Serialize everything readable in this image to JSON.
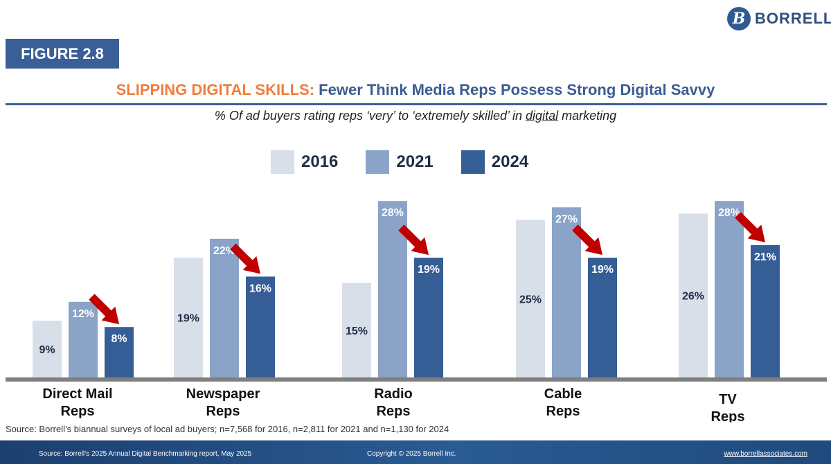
{
  "logo": {
    "mark": "B",
    "text": "BORRELL"
  },
  "figure_label": "FIGURE 2.8",
  "chart_data": {
    "type": "bar",
    "title_accent": "SLIPPING DIGITAL SKILLS:",
    "title": "Fewer Think Media Reps Possess Strong Digital Savvy",
    "subtitle_before": "% Of ad buyers rating reps ‘very’ to ‘extremely skilled’ in ",
    "subtitle_underlined": "digital",
    "subtitle_after": " marketing",
    "categories": [
      [
        "Direct Mail",
        "Reps"
      ],
      [
        "Newspaper",
        "Reps"
      ],
      [
        "Radio",
        "Reps"
      ],
      [
        "Cable",
        "Reps"
      ],
      [
        "TV",
        "Reps"
      ]
    ],
    "series": [
      {
        "name": "2016",
        "values": [
          9,
          19,
          15,
          25,
          26
        ],
        "labels": [
          "9%",
          "19%",
          "15%",
          "25%",
          "26%"
        ]
      },
      {
        "name": "2021",
        "values": [
          12,
          22,
          28,
          27,
          28
        ],
        "labels": [
          "12%",
          "22%",
          "28%",
          "27%",
          "28%"
        ]
      },
      {
        "name": "2024",
        "values": [
          8,
          16,
          19,
          19,
          21
        ],
        "labels": [
          "8%",
          "16%",
          "19%",
          "19%",
          "21%"
        ]
      }
    ],
    "ylim": [
      0,
      30
    ],
    "legend_position": "top",
    "grid": false,
    "annotations": "red downward arrow pointing to each 2024 bar"
  },
  "colors": {
    "s2016": "#d8dfe9",
    "s2021": "#8aa3c7",
    "s2024": "#355d96",
    "arrow": "#c00000",
    "baseline": "#7f7f7f",
    "title_accent": "#ef7d3c",
    "title_main": "#3b5c91"
  },
  "source_note": "Source: Borrell’s biannual surveys of local ad buyers; n=7,568 for 2016, n=2,811 for 2021 and n=1,130 for 2024",
  "footer": {
    "left": "Source:  Borrell’s 2025 Annual Digital Benchmarking report, May 2025",
    "center": "Copyright © 2025 Borrell Inc.",
    "right": "www.borrellassociates.com"
  }
}
